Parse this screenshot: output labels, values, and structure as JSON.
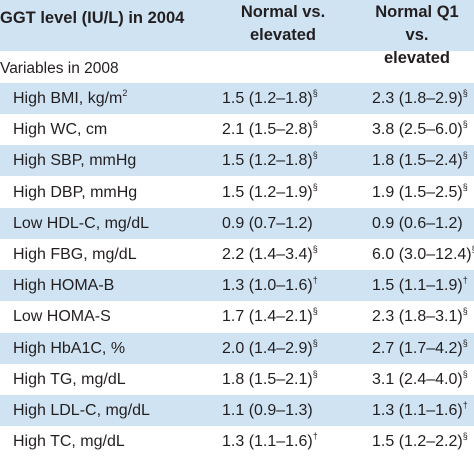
{
  "header": {
    "col1": "GGT level (IU/L) in 2004",
    "col2_line1": "Normal vs.",
    "col2_line2": "elevated",
    "col3_line1": "Normal Q1",
    "col3_line2": "vs.",
    "col3_line3": "elevated"
  },
  "section_label": "Variables in 2008",
  "rows": [
    {
      "name": "High BMI, kg/m",
      "name_sup": "2",
      "a": "1.5 (1.2–1.8)",
      "a_sup": "§",
      "b": "2.3 (1.8–2.9)",
      "b_sup": "§"
    },
    {
      "name": "High WC, cm",
      "name_sup": "",
      "a": "2.1 (1.5–2.8)",
      "a_sup": "§",
      "b": "3.8 (2.5–6.0)",
      "b_sup": "§"
    },
    {
      "name": "High SBP, mmHg",
      "name_sup": "",
      "a": "1.5 (1.2–1.8)",
      "a_sup": "§",
      "b": "1.8 (1.5–2.4)",
      "b_sup": "§"
    },
    {
      "name": "High DBP, mmHg",
      "name_sup": "",
      "a": "1.5 (1.2–1.9)",
      "a_sup": "§",
      "b": "1.9 (1.5–2.5)",
      "b_sup": "§"
    },
    {
      "name": "Low HDL-C, mg/dL",
      "name_sup": "",
      "a": "0.9 (0.7–1.2)",
      "a_sup": "",
      "b": "0.9 (0.6–1.2)",
      "b_sup": ""
    },
    {
      "name": "High FBG, mg/dL",
      "name_sup": "",
      "a": "2.2 (1.4–3.4)",
      "a_sup": "§",
      "b": "6.0 (3.0–12.4)",
      "b_sup": "§"
    },
    {
      "name": "High HOMA-B",
      "name_sup": "",
      "a": "1.3 (1.0–1.6)",
      "a_sup": "†",
      "b": "1.5 (1.1–1.9)",
      "b_sup": "†"
    },
    {
      "name": "Low HOMA-S",
      "name_sup": "",
      "a": "1.7 (1.4–2.1)",
      "a_sup": "§",
      "b": "2.3 (1.8–3.1)",
      "b_sup": "§"
    },
    {
      "name": "High HbA1C, %",
      "name_sup": "",
      "a": "2.0 (1.4–2.9)",
      "a_sup": "§",
      "b": "2.7 (1.7–4.2)",
      "b_sup": "§"
    },
    {
      "name": "High TG, mg/dL",
      "name_sup": "",
      "a": "1.8 (1.5–2.1)",
      "a_sup": "§",
      "b": "3.1 (2.4–4.0)",
      "b_sup": "§"
    },
    {
      "name": "High LDL-C, mg/dL",
      "name_sup": "",
      "a": "1.1 (0.9–1.3)",
      "a_sup": "",
      "b": "1.3 (1.1–1.6)",
      "b_sup": "†"
    },
    {
      "name": "High TC, mg/dL",
      "name_sup": "",
      "a": "1.3 (1.1–1.6)",
      "a_sup": "†",
      "b": "1.5 (1.2–2.2)",
      "b_sup": "§"
    }
  ]
}
